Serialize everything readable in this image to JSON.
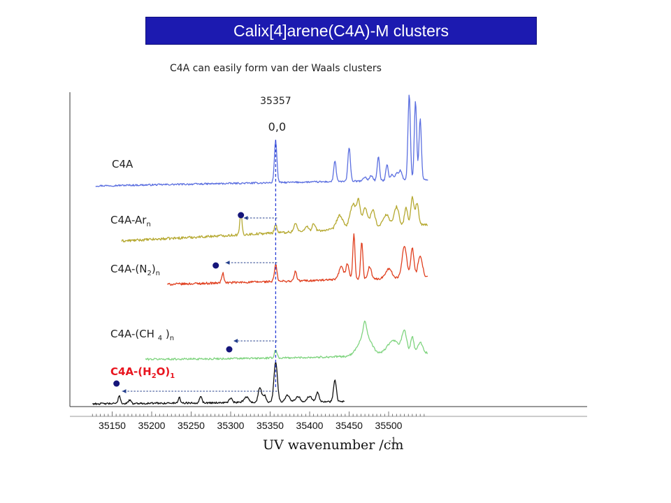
{
  "slide": {
    "title": "Calix[4]arene(C4A)-M clusters",
    "subtitle": "C4A can easily form van der Waals clusters"
  },
  "chart_data": {
    "type": "line",
    "xlabel": "UV wavenumber /cm",
    "xlabel_superscript": "-1",
    "xlim": [
      35125,
      35550
    ],
    "xticks": [
      "35150",
      "35200",
      "35250",
      "35300",
      "35350",
      "35400",
      "35450",
      "35500"
    ],
    "origin_marker": {
      "value": 35357,
      "label_value": "35357",
      "label_band": "0,0"
    },
    "colors": {
      "title_bar": "#1c1ab0",
      "dot": "#15157a",
      "arrow": "#243f8c",
      "dashed_line": "#2a3fd6"
    },
    "series": [
      {
        "name": "C4A",
        "color": "#5b6fe0",
        "label_parts": [
          [
            "C4A",
            ""
          ]
        ],
        "x_start": 35129,
        "x_end": 35550,
        "baseline": 0,
        "slope": 0.02,
        "noise": 1.2,
        "peaks": [
          [
            35357,
            60,
            1.6
          ],
          [
            35432,
            30,
            1.5
          ],
          [
            35450,
            48,
            1.6
          ],
          [
            35470,
            6,
            2
          ],
          [
            35478,
            8,
            2
          ],
          [
            35487,
            34,
            1.5
          ],
          [
            35498,
            24,
            1.5
          ],
          [
            35504,
            8,
            2
          ],
          [
            35510,
            10,
            2
          ],
          [
            35515,
            14,
            2
          ],
          [
            35526,
            124,
            1.5
          ],
          [
            35534,
            114,
            1.5
          ],
          [
            35540,
            88,
            1.5
          ]
        ]
      },
      {
        "name": "C4A-Arn",
        "color": "#b5a82f",
        "label_parts": [
          [
            "C4A-Ar",
            ""
          ],
          [
            "n",
            "sub"
          ]
        ],
        "x_start": 35162,
        "x_end": 35550,
        "baseline": 0,
        "slope": 0.06,
        "noise": 1.8,
        "peaks": [
          [
            35313,
            30,
            1.4
          ],
          [
            35357,
            12,
            1.6
          ],
          [
            35382,
            12,
            2
          ],
          [
            35396,
            8,
            2
          ],
          [
            35405,
            10,
            2
          ],
          [
            35438,
            20,
            4
          ],
          [
            35455,
            35,
            4
          ],
          [
            35462,
            34,
            2
          ],
          [
            35470,
            30,
            3
          ],
          [
            35480,
            25,
            3
          ],
          [
            35497,
            18,
            4
          ],
          [
            35510,
            28,
            3
          ],
          [
            35522,
            26,
            2
          ],
          [
            35530,
            40,
            2
          ],
          [
            35536,
            32,
            2
          ]
        ]
      },
      {
        "name": "C4A-(N2)n",
        "color": "#e04020",
        "label_parts": [
          [
            "C4A-(N",
            ""
          ],
          [
            "2",
            "sub"
          ],
          [
            ")",
            ""
          ],
          [
            "n",
            "sub"
          ]
        ],
        "x_start": 35220,
        "x_end": 35550,
        "baseline": 0,
        "slope": 0.03,
        "noise": 1.6,
        "peaks": [
          [
            35290,
            14,
            1.4
          ],
          [
            35357,
            24,
            1.6
          ],
          [
            35382,
            14,
            1.5
          ],
          [
            35440,
            18,
            3
          ],
          [
            35448,
            22,
            2
          ],
          [
            35456,
            64,
            1.4
          ],
          [
            35466,
            54,
            1.4
          ],
          [
            35476,
            18,
            2
          ],
          [
            35500,
            14,
            4
          ],
          [
            35520,
            46,
            3
          ],
          [
            35530,
            42,
            2
          ],
          [
            35540,
            30,
            3
          ]
        ]
      },
      {
        "name": "C4A-(CH 4 )n",
        "color": "#7fd47f",
        "label_parts": [
          [
            "C4A-(CH ",
            ""
          ],
          [
            "4",
            "sub"
          ],
          [
            " )",
            ""
          ],
          [
            "n",
            "sub"
          ]
        ],
        "x_start": 35192,
        "x_end": 35550,
        "baseline": 0,
        "slope": 0.0,
        "noise": 1.4,
        "exp_rise": [
          35150,
          0.007
        ],
        "peaks": [
          [
            35357,
            12,
            1.6
          ],
          [
            35470,
            30,
            8
          ],
          [
            35470,
            20,
            2
          ],
          [
            35506,
            20,
            8
          ],
          [
            35520,
            30,
            3
          ],
          [
            35530,
            24,
            2
          ],
          [
            35540,
            16,
            3
          ]
        ]
      },
      {
        "name": "C4A-(H2O)1",
        "color": "#111111",
        "label_color": "#e8141e",
        "label_bold": true,
        "label_parts": [
          [
            "C4A-(H",
            ""
          ],
          [
            "2",
            "sub"
          ],
          [
            "O)",
            ""
          ],
          [
            "1",
            "sub"
          ]
        ],
        "x_start": 35125,
        "x_end": 35445,
        "baseline": 0,
        "slope": 0.01,
        "noise": 1.3,
        "peaks": [
          [
            35159,
            12,
            1.4
          ],
          [
            35172,
            5,
            1.5
          ],
          [
            35235,
            8,
            1.4
          ],
          [
            35262,
            10,
            1.5
          ],
          [
            35300,
            6,
            2
          ],
          [
            35320,
            8,
            3
          ],
          [
            35337,
            22,
            2
          ],
          [
            35343,
            10,
            2
          ],
          [
            35357,
            58,
            2.2
          ],
          [
            35372,
            10,
            3
          ],
          [
            35385,
            8,
            3
          ],
          [
            35400,
            8,
            3
          ],
          [
            35410,
            14,
            2
          ],
          [
            35432,
            32,
            1.8
          ]
        ]
      }
    ],
    "shift_markers": [
      {
        "series": "C4A-Arn",
        "from": 35357,
        "to": 35313
      },
      {
        "series": "C4A-(N2)n",
        "from": 35357,
        "to": 35290
      },
      {
        "series": "C4A-(CH 4 )n",
        "from": 35357,
        "to": 35300
      },
      {
        "series": "C4A-(H2O)1",
        "from": 35357,
        "to": 35159
      }
    ]
  }
}
